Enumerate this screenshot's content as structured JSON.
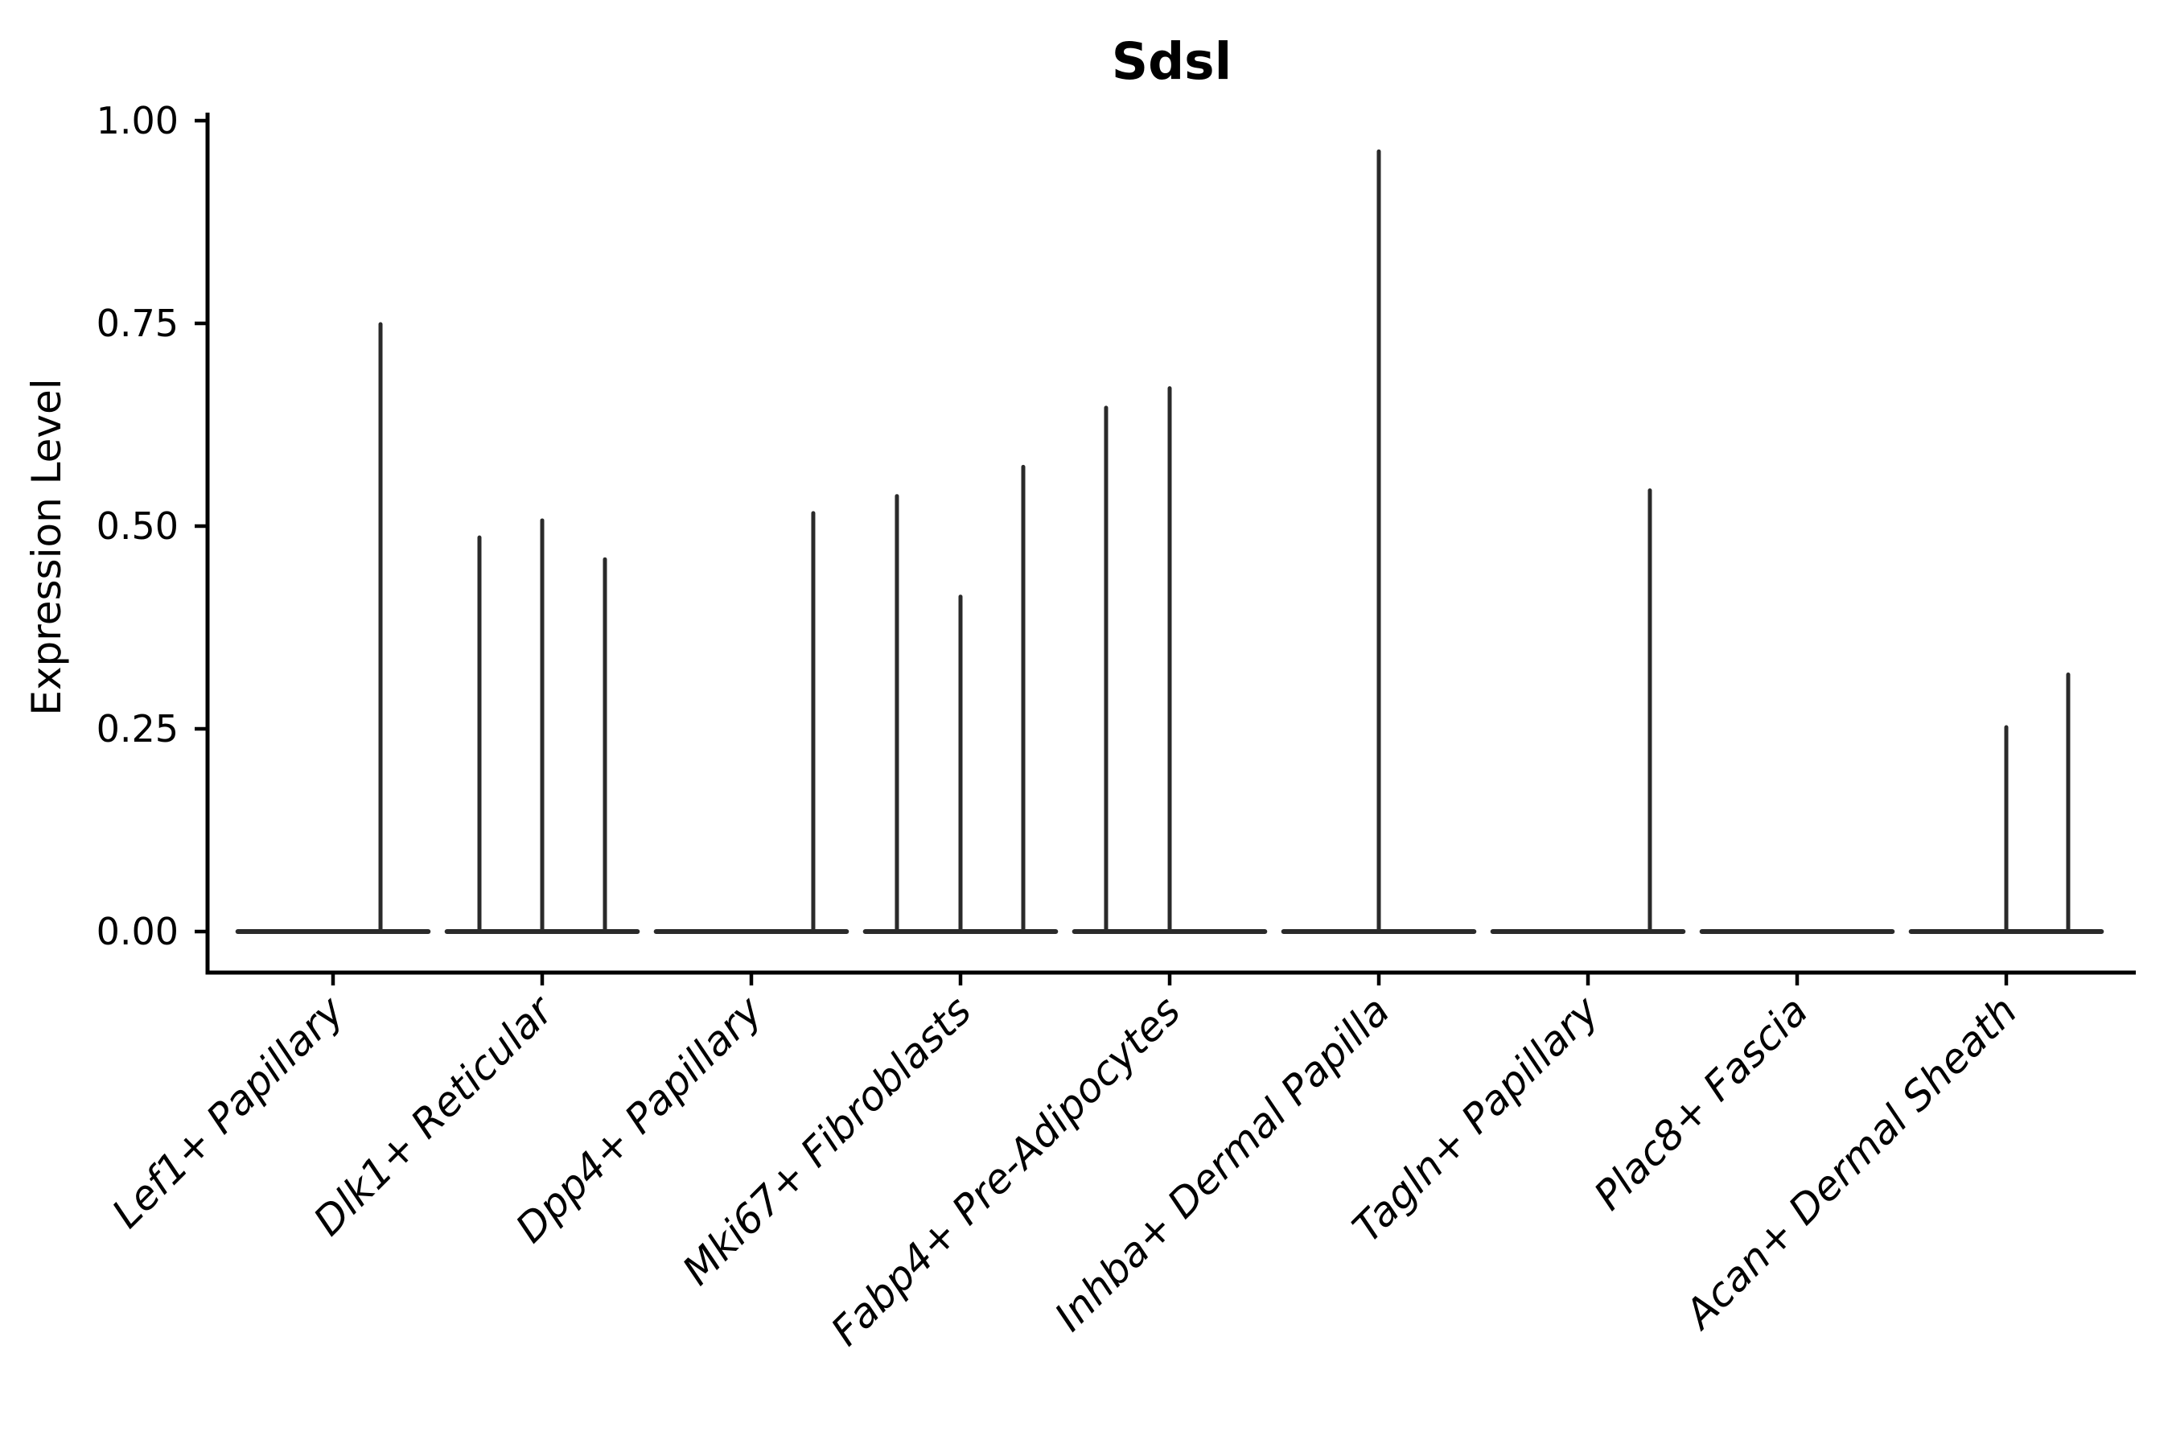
{
  "page": {
    "background": "#ffffff"
  },
  "title": "Sdsl",
  "y_axis": {
    "label": "Expression Level",
    "tick_labels": [
      "1.00",
      "0.75",
      "0.50",
      "0.25",
      "0.00"
    ],
    "tick_values": [
      1.0,
      0.75,
      0.5,
      0.25,
      0.0
    ]
  },
  "chart_data": {
    "type": "violin",
    "title": "Sdsl",
    "xlabel": "",
    "ylabel": "Expression Level",
    "ylim": [
      0,
      1
    ],
    "yticks": [
      0.0,
      0.25,
      0.5,
      0.75,
      1.0
    ],
    "grid": false,
    "legend_position": "none",
    "categories": [
      "Lef1+ Papillary",
      "Dlk1+ Reticular",
      "Dpp4+ Papillary",
      "Mki67+ Fibroblasts",
      "Fabp4+ Pre-Adipocytes",
      "Inhba+ Dermal Papilla",
      "Tagln+ Papillary",
      "Plac8+ Fascia",
      "Acan+ Dermal Sheath"
    ],
    "description": "Violin plot of Sdsl expression level per fibroblast subtype; bulk of cells at 0 (flat baselines), rare expressing cells form thin density spikes. Three sub-violins (samples) per category at offsets -0.3, 0, +0.3.",
    "baseline_value": 0,
    "baseline_half_width": 0.455,
    "groups": [
      {
        "category": "Lef1+ Papillary",
        "spikes": [
          {
            "offset": 0.227,
            "max": 0.749
          }
        ]
      },
      {
        "category": "Dlk1+ Reticular",
        "spikes": [
          {
            "offset": -0.3,
            "max": 0.486
          },
          {
            "offset": 0.0,
            "max": 0.507
          },
          {
            "offset": 0.3,
            "max": 0.459
          }
        ]
      },
      {
        "category": "Dpp4+ Papillary",
        "spikes": [
          {
            "offset": 0.296,
            "max": 0.516
          }
        ]
      },
      {
        "category": "Mki67+ Fibroblasts",
        "spikes": [
          {
            "offset": -0.304,
            "max": 0.537
          },
          {
            "offset": 0.0,
            "max": 0.413
          },
          {
            "offset": 0.3,
            "max": 0.573
          }
        ]
      },
      {
        "category": "Fabp4+ Pre-Adipocytes",
        "spikes": [
          {
            "offset": -0.304,
            "max": 0.646
          },
          {
            "offset": 0.0,
            "max": 0.67
          }
        ]
      },
      {
        "category": "Inhba+ Dermal Papilla",
        "spikes": [
          {
            "offset": 0.0,
            "max": 0.962
          }
        ]
      },
      {
        "category": "Tagln+ Papillary",
        "spikes": [
          {
            "offset": 0.296,
            "max": 0.544
          }
        ]
      },
      {
        "category": "Plac8+ Fascia",
        "spikes": []
      },
      {
        "category": "Acan+ Dermal Sheath",
        "spikes": [
          {
            "offset": 0.0,
            "max": 0.252
          },
          {
            "offset": 0.296,
            "max": 0.317
          }
        ]
      }
    ],
    "style": {
      "violin_line_color": "#2a2a2a",
      "axis_color": "#000000",
      "x_label_rotation_deg": 45,
      "x_label_style": "italic"
    }
  }
}
